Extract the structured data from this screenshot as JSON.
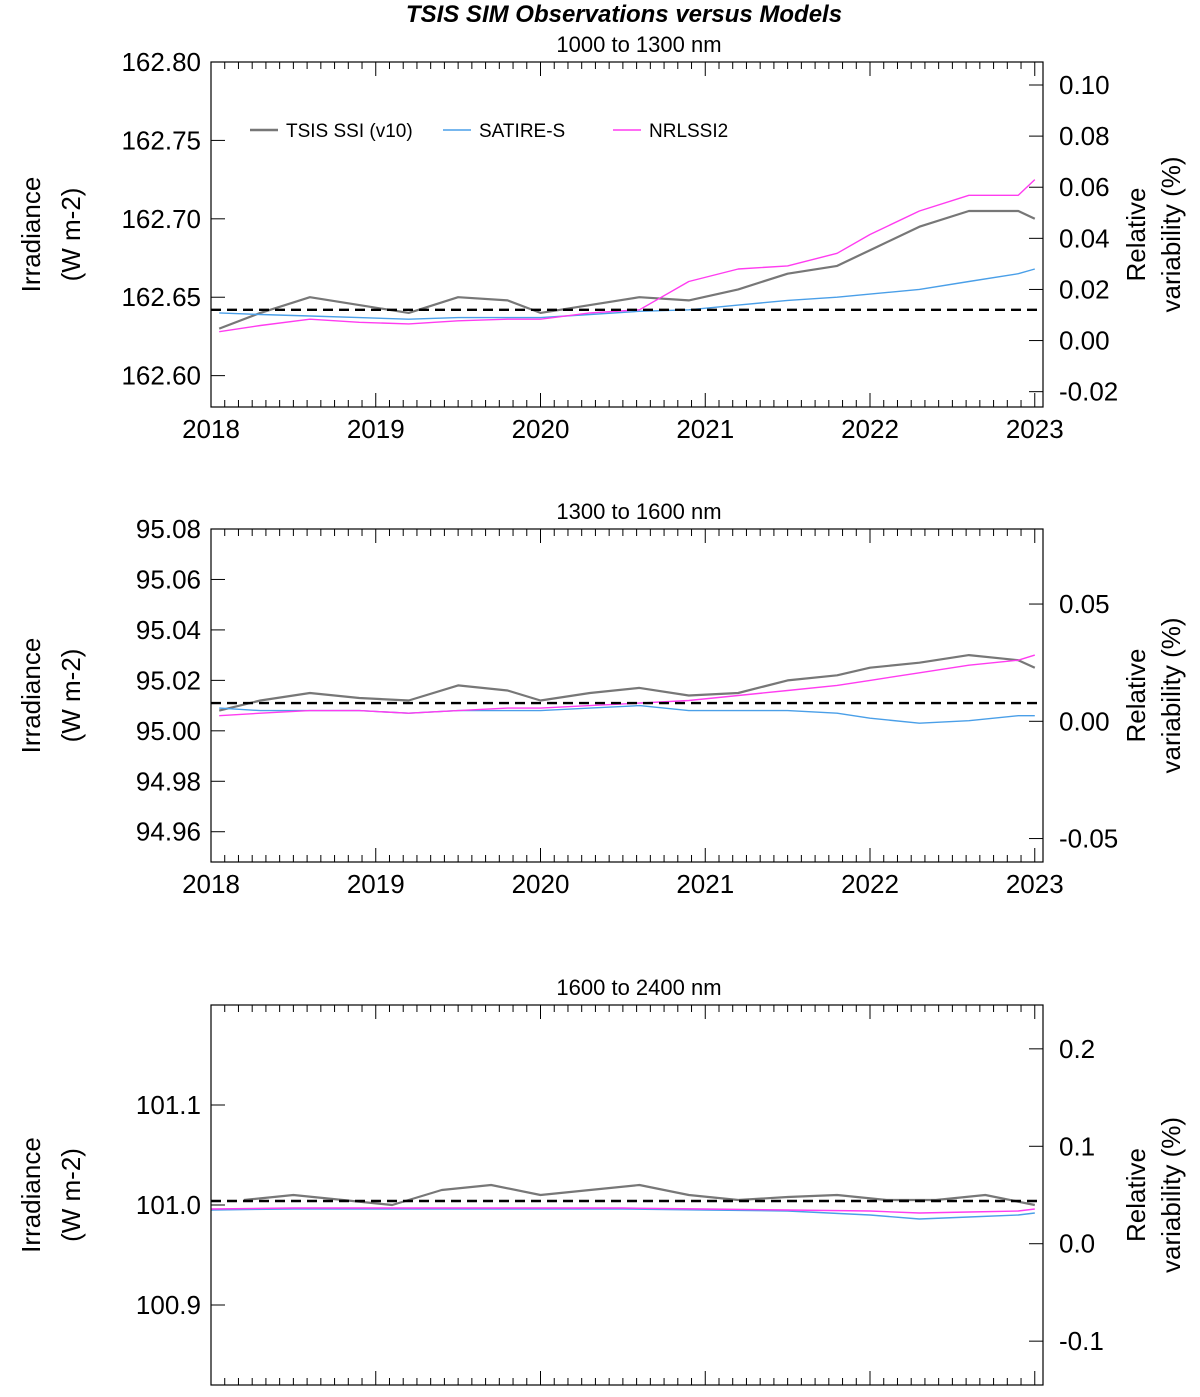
{
  "figure": {
    "title": "TSIS SIM Observations versus Models"
  },
  "legend": {
    "entries": [
      {
        "label": "TSIS SSI (v10)",
        "color": "#777777"
      },
      {
        "label": "SATIRE-S",
        "color": "#4a9fe8"
      },
      {
        "label": "NRLSSI2",
        "color": "#ff3cf0"
      }
    ]
  },
  "colors": {
    "tsis": "#777777",
    "satire": "#4a9fe8",
    "nrlssi2": "#ff3cf0",
    "baseline": "#000000"
  },
  "chart_data": [
    {
      "type": "line",
      "title": "1000 to  1300 nm",
      "ylabel": "Irradiance",
      "ylabel_unit": "(W m-2)",
      "y2label_top": "Relative",
      "y2label_bottom": "variability (%)",
      "xlim": [
        2018.0,
        2023.05
      ],
      "ylim": [
        162.58,
        162.8
      ],
      "y2lim": [
        -0.026,
        0.109
      ],
      "xticks": [
        2018,
        2019,
        2020,
        2021,
        2022,
        2023
      ],
      "yticks": [
        162.6,
        162.65,
        162.7,
        162.75,
        162.8
      ],
      "ytick_labels": [
        "162.60",
        "162.65",
        "162.70",
        "162.75",
        "162.80"
      ],
      "y2ticks": [
        -0.02,
        0.0,
        0.02,
        0.04,
        0.06,
        0.08,
        0.1
      ],
      "y2tick_labels": [
        "-0.02",
        "0.00",
        "0.02",
        "0.04",
        "0.06",
        "0.08",
        "0.10"
      ],
      "baseline": 162.642,
      "legend": "top-left",
      "series": [
        {
          "name": "TSIS SSI (v10)",
          "x": [
            2018.05,
            2018.3,
            2018.6,
            2018.9,
            2019.2,
            2019.5,
            2019.8,
            2020.0,
            2020.3,
            2020.6,
            2020.9,
            2021.2,
            2021.5,
            2021.8,
            2022.0,
            2022.3,
            2022.6,
            2022.9,
            2023.0
          ],
          "y": [
            162.63,
            162.64,
            162.65,
            162.645,
            162.64,
            162.65,
            162.648,
            162.64,
            162.645,
            162.65,
            162.648,
            162.655,
            162.665,
            162.67,
            162.68,
            162.695,
            162.705,
            162.705,
            162.7
          ]
        },
        {
          "name": "SATIRE-S",
          "x": [
            2018.05,
            2018.3,
            2018.6,
            2018.9,
            2019.2,
            2019.5,
            2019.8,
            2020.0,
            2020.3,
            2020.6,
            2020.9,
            2021.2,
            2021.5,
            2021.8,
            2022.0,
            2022.3,
            2022.6,
            2022.9,
            2023.0
          ],
          "y": [
            162.64,
            162.639,
            162.638,
            162.637,
            162.636,
            162.637,
            162.637,
            162.637,
            162.639,
            162.641,
            162.642,
            162.645,
            162.648,
            162.65,
            162.652,
            162.655,
            162.66,
            162.665,
            162.668
          ]
        },
        {
          "name": "NRLSSI2",
          "x": [
            2018.05,
            2018.3,
            2018.6,
            2018.9,
            2019.2,
            2019.5,
            2019.8,
            2020.0,
            2020.3,
            2020.6,
            2020.9,
            2021.2,
            2021.5,
            2021.8,
            2022.0,
            2022.3,
            2022.6,
            2022.9,
            2023.0
          ],
          "y": [
            162.628,
            162.632,
            162.636,
            162.634,
            162.633,
            162.635,
            162.636,
            162.636,
            162.64,
            162.642,
            162.66,
            162.668,
            162.67,
            162.678,
            162.69,
            162.705,
            162.715,
            162.715,
            162.725
          ]
        }
      ]
    },
    {
      "type": "line",
      "title": "1300 to  1600 nm",
      "ylabel": "Irradiance",
      "ylabel_unit": "(W m-2)",
      "y2label_top": "Relative",
      "y2label_bottom": "variability (%)",
      "xlim": [
        2018.0,
        2023.05
      ],
      "ylim": [
        94.948,
        95.08
      ],
      "y2lim": [
        -0.06,
        0.082
      ],
      "xticks": [
        2018,
        2019,
        2020,
        2021,
        2022,
        2023
      ],
      "yticks": [
        94.96,
        94.98,
        95.0,
        95.02,
        95.04,
        95.06,
        95.08
      ],
      "ytick_labels": [
        "94.96",
        "94.98",
        "95.00",
        "95.02",
        "95.04",
        "95.06",
        "95.08"
      ],
      "y2ticks": [
        -0.05,
        0.0,
        0.05
      ],
      "y2tick_labels": [
        "-0.05",
        "0.00",
        "0.05"
      ],
      "baseline": 95.011,
      "legend": "none",
      "series": [
        {
          "name": "TSIS SSI (v10)",
          "x": [
            2018.05,
            2018.3,
            2018.6,
            2018.9,
            2019.2,
            2019.5,
            2019.8,
            2020.0,
            2020.3,
            2020.6,
            2020.9,
            2021.2,
            2021.5,
            2021.8,
            2022.0,
            2022.3,
            2022.6,
            2022.9,
            2023.0
          ],
          "y": [
            95.008,
            95.012,
            95.015,
            95.013,
            95.012,
            95.018,
            95.016,
            95.012,
            95.015,
            95.017,
            95.014,
            95.015,
            95.02,
            95.022,
            95.025,
            95.027,
            95.03,
            95.028,
            95.025
          ]
        },
        {
          "name": "SATIRE-S",
          "x": [
            2018.05,
            2018.3,
            2018.6,
            2018.9,
            2019.2,
            2019.5,
            2019.8,
            2020.0,
            2020.3,
            2020.6,
            2020.9,
            2021.2,
            2021.5,
            2021.8,
            2022.0,
            2022.3,
            2022.6,
            2022.9,
            2023.0
          ],
          "y": [
            95.009,
            95.008,
            95.008,
            95.008,
            95.007,
            95.008,
            95.008,
            95.008,
            95.009,
            95.01,
            95.008,
            95.008,
            95.008,
            95.007,
            95.005,
            95.003,
            95.004,
            95.006,
            95.006
          ]
        },
        {
          "name": "NRLSSI2",
          "x": [
            2018.05,
            2018.3,
            2018.6,
            2018.9,
            2019.2,
            2019.5,
            2019.8,
            2020.0,
            2020.3,
            2020.6,
            2020.9,
            2021.2,
            2021.5,
            2021.8,
            2022.0,
            2022.3,
            2022.6,
            2022.9,
            2023.0
          ],
          "y": [
            95.006,
            95.007,
            95.008,
            95.008,
            95.007,
            95.008,
            95.009,
            95.009,
            95.01,
            95.011,
            95.012,
            95.014,
            95.016,
            95.018,
            95.02,
            95.023,
            95.026,
            95.028,
            95.03
          ]
        }
      ]
    },
    {
      "type": "line",
      "title": "1600 to  2400 nm",
      "ylabel": "Irradiance",
      "ylabel_unit": "(W m-2)",
      "y2label_top": "Relative",
      "y2label_bottom": "variability (%)",
      "xlim": [
        2018.0,
        2023.05
      ],
      "ylim": [
        100.82,
        101.2
      ],
      "y2lim": [
        -0.145,
        0.245
      ],
      "xticks": [
        2018,
        2019,
        2020,
        2021,
        2022,
        2023
      ],
      "yticks": [
        100.9,
        101.0,
        101.1
      ],
      "ytick_labels": [
        "100.9",
        "101.0",
        "101.1"
      ],
      "y2ticks": [
        -0.1,
        0.0,
        0.1,
        0.2
      ],
      "y2tick_labels": [
        "-0.1",
        "0.0",
        "0.1",
        "0.2"
      ],
      "baseline": 101.004,
      "legend": "none",
      "series": [
        {
          "name": "TSIS SSI (v10)",
          "x": [
            2018.2,
            2018.5,
            2018.8,
            2019.1,
            2019.4,
            2019.7,
            2020.0,
            2020.3,
            2020.6,
            2020.9,
            2021.2,
            2021.5,
            2021.8,
            2022.1,
            2022.4,
            2022.7,
            2023.0
          ],
          "y": [
            101.005,
            101.01,
            101.005,
            101.0,
            101.015,
            101.02,
            101.01,
            101.015,
            101.02,
            101.01,
            101.005,
            101.008,
            101.01,
            101.005,
            101.005,
            101.01,
            101.0
          ]
        },
        {
          "name": "SATIRE-S",
          "x": [
            2018.0,
            2018.5,
            2019.0,
            2019.5,
            2020.0,
            2020.5,
            2021.0,
            2021.5,
            2022.0,
            2022.3,
            2022.6,
            2022.9,
            2023.0
          ],
          "y": [
            100.995,
            100.996,
            100.996,
            100.996,
            100.996,
            100.996,
            100.995,
            100.994,
            100.99,
            100.986,
            100.988,
            100.99,
            100.992
          ]
        },
        {
          "name": "NRLSSI2",
          "x": [
            2018.0,
            2018.5,
            2019.0,
            2019.5,
            2020.0,
            2020.5,
            2021.0,
            2021.5,
            2022.0,
            2022.3,
            2022.6,
            2022.9,
            2023.0
          ],
          "y": [
            100.996,
            100.997,
            100.997,
            100.997,
            100.997,
            100.997,
            100.996,
            100.995,
            100.994,
            100.992,
            100.993,
            100.994,
            100.996
          ]
        }
      ]
    }
  ]
}
